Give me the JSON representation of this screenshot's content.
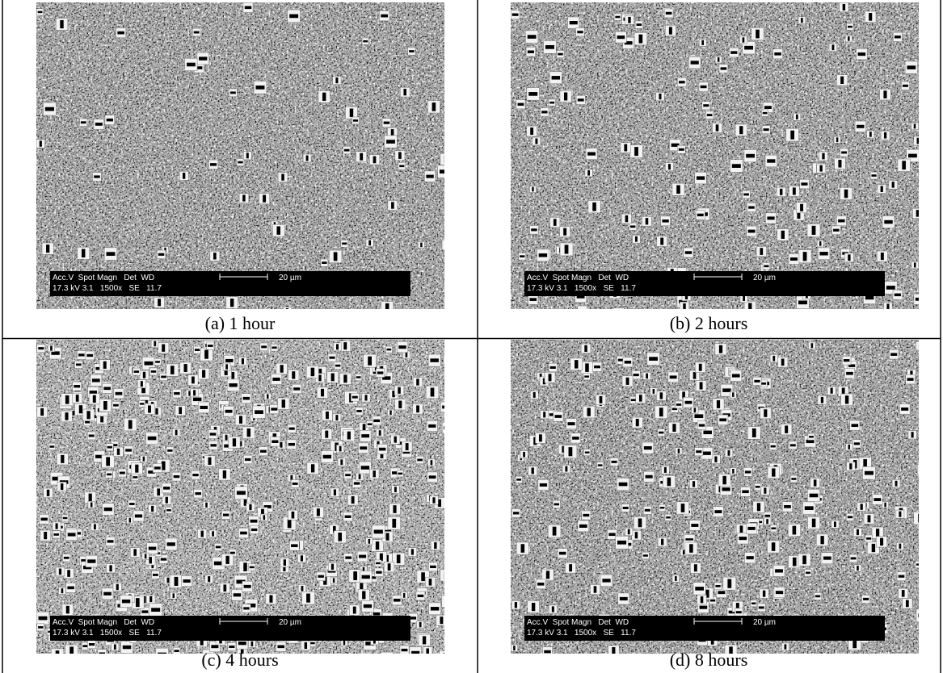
{
  "panels": [
    {
      "caption": "(a) 1 hour",
      "info_bar": {
        "labels": "Acc.V  Spot Magn   Det  WD",
        "values": "17.3 kV 3.1   1500x   SE   11.7",
        "scale": "20 µm"
      }
    },
    {
      "caption": "(b) 2 hours",
      "info_bar": {
        "labels": "Acc.V  Spot Magn   Det  WD",
        "values": "17.3 kV 3.1   1500x   SE   11.7",
        "scale": "20 µm"
      }
    },
    {
      "caption": "(c) 4 hours",
      "info_bar": {
        "labels": "Acc.V  Spot Magn   Det  WD",
        "values": "17.3 kV 3.1   1500x   SE   11.7",
        "scale": "20 µm"
      }
    },
    {
      "caption": "(d) 8 hours",
      "info_bar": {
        "labels": "Acc.V  Spot Magn   Det  WD",
        "values": "17.3 kV 3.1   1500x   SE   11.7",
        "scale": "20 µm"
      }
    }
  ]
}
